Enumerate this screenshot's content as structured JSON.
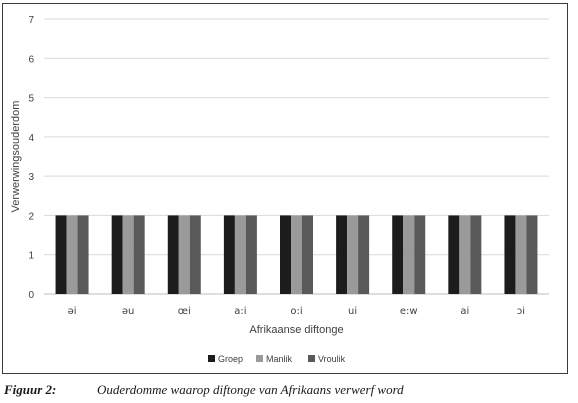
{
  "chart_data": {
    "type": "bar",
    "title": "",
    "xlabel": "Afrikaanse diftonge",
    "ylabel": "Verwerwingsouderdom",
    "ylim": [
      0,
      7
    ],
    "yticks": [
      0,
      1,
      2,
      3,
      4,
      5,
      6,
      7
    ],
    "grid": true,
    "legend_position": "bottom",
    "categories": [
      "əi",
      "əu",
      "œi",
      "a:i",
      "o:i",
      "ui",
      "e:w",
      "ai",
      "ɔi"
    ],
    "series": [
      {
        "name": "Groep",
        "color": "#1c1c1c",
        "values": [
          2,
          2,
          2,
          2,
          2,
          2,
          2,
          2,
          2
        ]
      },
      {
        "name": "Manlik",
        "color": "#9a9a9a",
        "values": [
          2,
          2,
          2,
          2,
          2,
          2,
          2,
          2,
          2
        ]
      },
      {
        "name": "Vroulik",
        "color": "#595959",
        "values": [
          2,
          2,
          2,
          2,
          2,
          2,
          2,
          2,
          2
        ]
      }
    ]
  },
  "caption": {
    "number": "Figuur 2:",
    "text": "Ouderdomme waarop diftonge van Afrikaans verwerf word"
  }
}
